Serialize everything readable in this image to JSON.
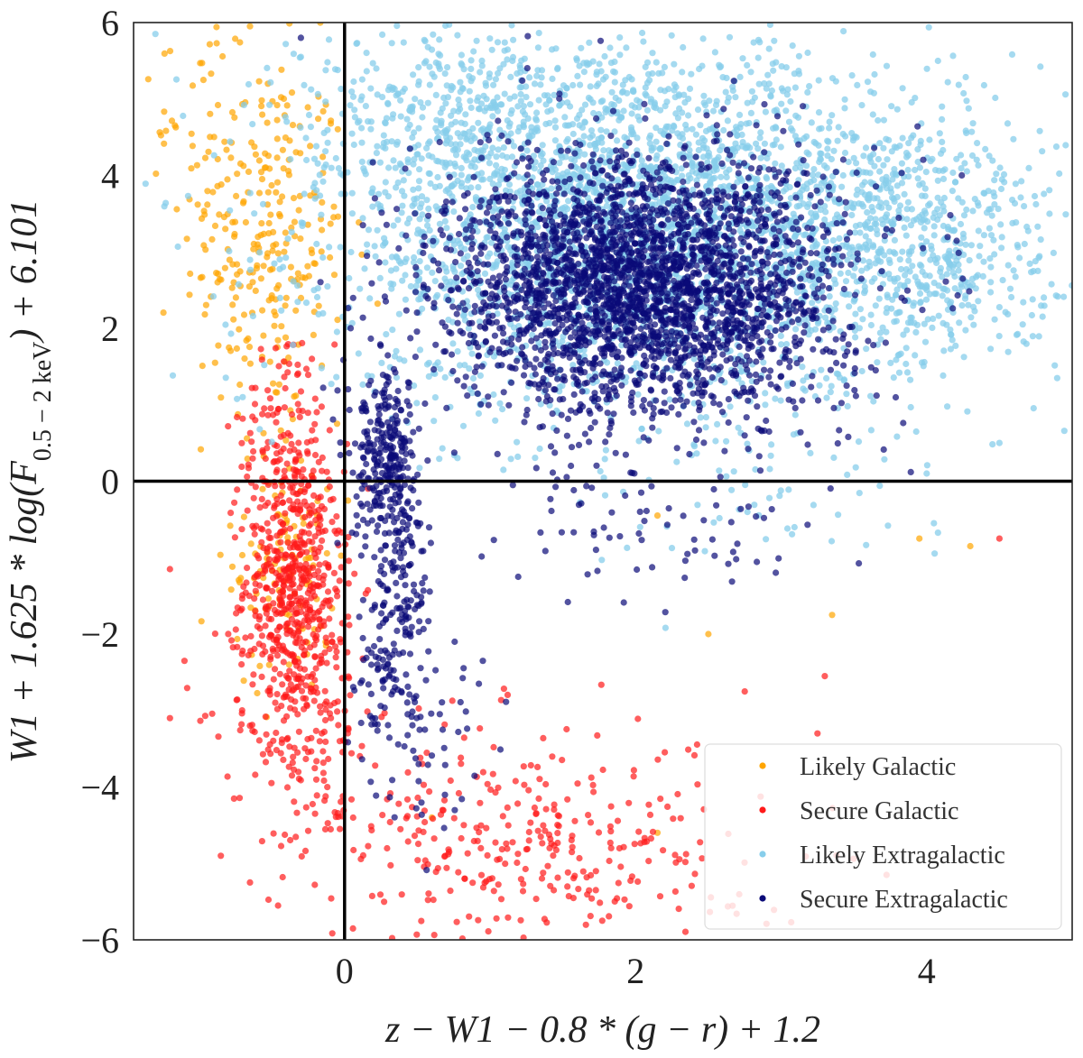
{
  "chart_data": {
    "type": "scatter",
    "title": "",
    "xlabel": "z − W1 − 0.8 * (g − r) + 1.2",
    "ylabel": "W1 + 1.625 * log(F0.5−2keV) + 6.101",
    "ylabel_parts": {
      "prefix": "W1 + 1.625 * log(F",
      "subscript": "0.5 − 2 keV",
      "suffix": ") + 6.101"
    },
    "xlim": [
      -1.45,
      5.0
    ],
    "ylim": [
      -6,
      6
    ],
    "xticks": [
      0,
      2,
      4
    ],
    "yticks": [
      -6,
      -4,
      -2,
      0,
      2,
      4,
      6
    ],
    "xtick_labels": [
      "0",
      "2",
      "4"
    ],
    "ytick_labels": [
      "−6",
      "−4",
      "−2",
      "0",
      "2",
      "4",
      "6"
    ],
    "reference_lines": {
      "x": 0,
      "y": 0
    },
    "legend_location": "lower-right",
    "series": [
      {
        "name": "Likely Galactic",
        "color": "#FFA500",
        "regions": [
          {
            "cx": -0.55,
            "cy": 3.2,
            "sx": 0.28,
            "sy": 1.2,
            "n": 260
          },
          {
            "cx": -0.4,
            "cy": -1.0,
            "sx": 0.18,
            "sy": 0.9,
            "n": 110
          },
          {
            "cx": -1.05,
            "cy": 4.8,
            "sx": 0.25,
            "sy": 0.7,
            "n": 35
          }
        ],
        "points": [
          {
            "x": 4.3,
            "y": -0.85
          },
          {
            "x": 3.95,
            "y": -0.75
          },
          {
            "x": 2.5,
            "y": -2.0
          },
          {
            "x": 3.35,
            "y": -1.75
          },
          {
            "x": 2.15,
            "y": -0.45
          },
          {
            "x": 2.15,
            "y": -4.6
          },
          {
            "x": 0.6,
            "y": -4.4
          },
          {
            "x": -0.65,
            "y": 5.95
          }
        ]
      },
      {
        "name": "Secure Galactic",
        "color": "#FF1A1A",
        "regions": [
          {
            "cx": -0.35,
            "cy": -1.3,
            "sx": 0.17,
            "sy": 0.9,
            "n": 520
          },
          {
            "cx": -0.3,
            "cy": -2.9,
            "sx": 0.25,
            "sy": 0.8,
            "n": 160
          },
          {
            "cx": -0.4,
            "cy": 0.8,
            "sx": 0.15,
            "sy": 0.6,
            "n": 90
          },
          {
            "cx": 0.95,
            "cy": -4.6,
            "sx": 0.75,
            "sy": 0.75,
            "n": 280
          },
          {
            "cx": 2.0,
            "cy": -5.1,
            "sx": 0.6,
            "sy": 0.6,
            "n": 80
          }
        ],
        "points": [
          {
            "x": 4.5,
            "y": -0.75
          },
          {
            "x": -1.2,
            "y": -3.1
          },
          {
            "x": -1.1,
            "y": -2.35
          },
          {
            "x": -1.2,
            "y": -1.15
          },
          {
            "x": -0.85,
            "y": -4.9
          },
          {
            "x": -0.65,
            "y": -5.25
          },
          {
            "x": 3.3,
            "y": -2.55
          },
          {
            "x": 3.25,
            "y": -3.3
          },
          {
            "x": 2.75,
            "y": -2.75
          }
        ]
      },
      {
        "name": "Likely Extragalactic",
        "color": "#87CEEB",
        "regions": [
          {
            "cx": 2.0,
            "cy": 3.35,
            "sx": 1.05,
            "sy": 1.15,
            "n": 2900
          },
          {
            "cx": 3.85,
            "cy": 3.1,
            "sx": 0.55,
            "sy": 0.9,
            "n": 600
          },
          {
            "cx": 0.7,
            "cy": 4.9,
            "sx": 0.5,
            "sy": 0.6,
            "n": 300
          },
          {
            "cx": 2.8,
            "cy": -0.4,
            "sx": 0.8,
            "sy": 0.5,
            "n": 40
          }
        ],
        "points": [
          {
            "x": -1.3,
            "y": 5.85
          },
          {
            "x": -0.3,
            "y": 5.55
          },
          {
            "x": 4.5,
            "y": 0.5
          },
          {
            "x": 4.0,
            "y": 0.1
          },
          {
            "x": 4.05,
            "y": -0.55
          },
          {
            "x": -0.7,
            "y": 1.1
          }
        ]
      },
      {
        "name": "Secure Extragalactic",
        "color": "#0A0A78",
        "regions": [
          {
            "cx": 2.05,
            "cy": 2.55,
            "sx": 0.68,
            "sy": 0.85,
            "n": 2900
          },
          {
            "cx": 0.3,
            "cy": 0.25,
            "sx": 0.12,
            "sy": 0.55,
            "n": 260
          },
          {
            "cx": 0.35,
            "cy": -1.4,
            "sx": 0.12,
            "sy": 0.9,
            "n": 200
          },
          {
            "cx": 0.5,
            "cy": -3.2,
            "sx": 0.22,
            "sy": 0.7,
            "n": 60
          },
          {
            "cx": 2.2,
            "cy": -0.7,
            "sx": 0.55,
            "sy": 0.45,
            "n": 70
          }
        ],
        "points": [
          {
            "x": -0.3,
            "y": 5.8
          },
          {
            "x": 0.45,
            "y": 4.35
          },
          {
            "x": 3.45,
            "y": 1.25
          },
          {
            "x": 3.65,
            "y": 1.45
          },
          {
            "x": 0.95,
            "y": -2.35
          }
        ]
      }
    ]
  }
}
